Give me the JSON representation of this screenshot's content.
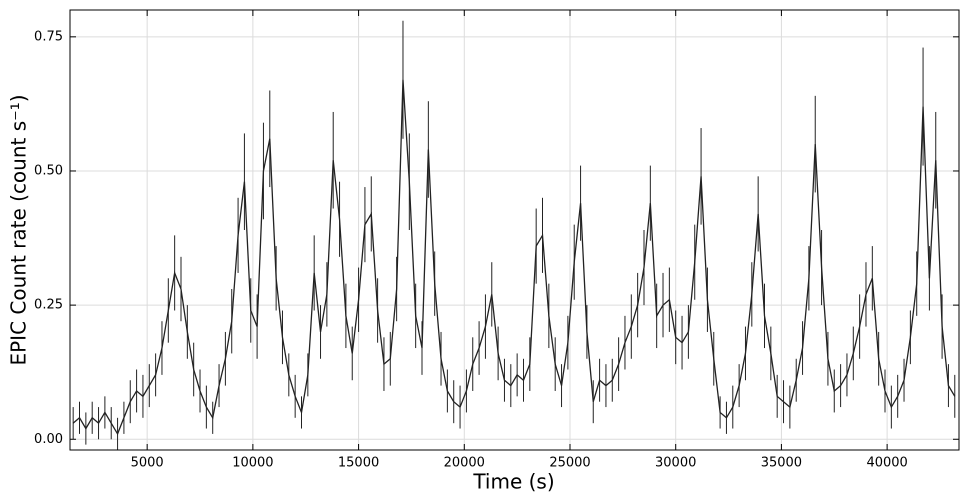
{
  "chart_data": {
    "type": "errorbar_line",
    "xlabel": "Time (s)",
    "ylabel": "EPIC Count rate (count s⁻¹)",
    "color": "#222222",
    "grid": true,
    "xlim": [
      1350,
      43400
    ],
    "ylim": [
      -0.02,
      0.8
    ],
    "xticks": [
      5000,
      10000,
      15000,
      20000,
      25000,
      30000,
      35000,
      40000
    ],
    "yticks": [
      {
        "value": 0,
        "label": "0.00"
      },
      {
        "value": 0.25,
        "label": "0.25"
      },
      {
        "value": 0.5,
        "label": "0.50"
      },
      {
        "value": 0.75,
        "label": "0.75"
      }
    ],
    "x": [
      1500,
      1800,
      2100,
      2400,
      2700,
      3000,
      3300,
      3600,
      3900,
      4200,
      4500,
      4800,
      5100,
      5400,
      5700,
      6000,
      6300,
      6600,
      6900,
      7200,
      7500,
      7800,
      8100,
      8400,
      8700,
      9000,
      9300,
      9600,
      9900,
      10200,
      10500,
      10800,
      11100,
      11400,
      11700,
      12000,
      12300,
      12600,
      12900,
      13200,
      13500,
      13800,
      14100,
      14400,
      14700,
      15000,
      15300,
      15600,
      15900,
      16200,
      16500,
      16800,
      17100,
      17400,
      17700,
      18000,
      18300,
      18600,
      18900,
      19200,
      19500,
      19800,
      20100,
      20400,
      20700,
      21000,
      21300,
      21600,
      21900,
      22200,
      22500,
      22800,
      23100,
      23400,
      23700,
      24000,
      24300,
      24600,
      24900,
      25200,
      25500,
      25800,
      26100,
      26400,
      26700,
      27000,
      27300,
      27600,
      27900,
      28200,
      28500,
      28800,
      29100,
      29400,
      29700,
      30000,
      30300,
      30600,
      30900,
      31200,
      31500,
      31800,
      32100,
      32400,
      32700,
      33000,
      33300,
      33600,
      33900,
      34200,
      34500,
      34800,
      35100,
      35400,
      35700,
      36000,
      36300,
      36600,
      36900,
      37200,
      37500,
      37800,
      38100,
      38400,
      38700,
      39000,
      39300,
      39600,
      39900,
      40200,
      40500,
      40800,
      41100,
      41400,
      41700,
      42000,
      42300,
      42600,
      42900,
      43200
    ],
    "values": [
      0.03,
      0.04,
      0.02,
      0.04,
      0.03,
      0.05,
      0.03,
      0.01,
      0.04,
      0.07,
      0.09,
      0.08,
      0.1,
      0.12,
      0.17,
      0.24,
      0.31,
      0.28,
      0.2,
      0.13,
      0.09,
      0.06,
      0.04,
      0.1,
      0.15,
      0.22,
      0.38,
      0.48,
      0.24,
      0.21,
      0.5,
      0.56,
      0.3,
      0.19,
      0.12,
      0.08,
      0.05,
      0.12,
      0.31,
      0.2,
      0.27,
      0.52,
      0.41,
      0.23,
      0.16,
      0.26,
      0.4,
      0.42,
      0.24,
      0.14,
      0.15,
      0.28,
      0.67,
      0.48,
      0.23,
      0.17,
      0.54,
      0.29,
      0.15,
      0.09,
      0.07,
      0.06,
      0.09,
      0.14,
      0.17,
      0.21,
      0.27,
      0.16,
      0.11,
      0.1,
      0.12,
      0.11,
      0.14,
      0.36,
      0.38,
      0.23,
      0.14,
      0.1,
      0.18,
      0.33,
      0.44,
      0.2,
      0.07,
      0.11,
      0.1,
      0.11,
      0.14,
      0.18,
      0.21,
      0.25,
      0.32,
      0.44,
      0.23,
      0.25,
      0.26,
      0.19,
      0.18,
      0.2,
      0.33,
      0.49,
      0.26,
      0.15,
      0.05,
      0.04,
      0.06,
      0.1,
      0.16,
      0.27,
      0.42,
      0.23,
      0.16,
      0.08,
      0.07,
      0.06,
      0.11,
      0.17,
      0.3,
      0.55,
      0.32,
      0.15,
      0.09,
      0.1,
      0.12,
      0.16,
      0.21,
      0.27,
      0.3,
      0.15,
      0.09,
      0.06,
      0.08,
      0.11,
      0.19,
      0.29,
      0.62,
      0.3,
      0.52,
      0.21,
      0.1,
      0.08
    ],
    "errors": [
      0.03,
      0.03,
      0.03,
      0.03,
      0.03,
      0.03,
      0.03,
      0.03,
      0.03,
      0.04,
      0.04,
      0.04,
      0.04,
      0.04,
      0.05,
      0.06,
      0.07,
      0.06,
      0.05,
      0.05,
      0.04,
      0.04,
      0.03,
      0.04,
      0.05,
      0.06,
      0.07,
      0.09,
      0.06,
      0.06,
      0.09,
      0.09,
      0.06,
      0.05,
      0.04,
      0.04,
      0.03,
      0.04,
      0.07,
      0.05,
      0.06,
      0.09,
      0.07,
      0.06,
      0.05,
      0.06,
      0.07,
      0.07,
      0.06,
      0.05,
      0.05,
      0.06,
      0.11,
      0.09,
      0.06,
      0.05,
      0.09,
      0.06,
      0.05,
      0.04,
      0.04,
      0.04,
      0.04,
      0.05,
      0.05,
      0.06,
      0.06,
      0.05,
      0.04,
      0.04,
      0.04,
      0.04,
      0.05,
      0.07,
      0.07,
      0.06,
      0.05,
      0.04,
      0.05,
      0.07,
      0.07,
      0.05,
      0.04,
      0.04,
      0.04,
      0.04,
      0.05,
      0.05,
      0.06,
      0.06,
      0.07,
      0.07,
      0.06,
      0.06,
      0.06,
      0.05,
      0.05,
      0.05,
      0.07,
      0.09,
      0.06,
      0.05,
      0.03,
      0.03,
      0.04,
      0.04,
      0.05,
      0.06,
      0.07,
      0.06,
      0.05,
      0.04,
      0.04,
      0.04,
      0.04,
      0.05,
      0.06,
      0.09,
      0.07,
      0.05,
      0.04,
      0.04,
      0.04,
      0.05,
      0.06,
      0.06,
      0.06,
      0.05,
      0.04,
      0.04,
      0.04,
      0.04,
      0.05,
      0.06,
      0.11,
      0.06,
      0.09,
      0.06,
      0.04,
      0.04
    ]
  }
}
